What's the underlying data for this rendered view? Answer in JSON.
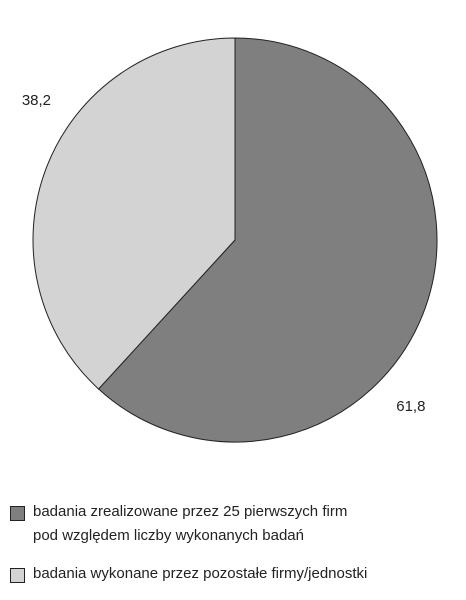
{
  "chart_data": {
    "type": "pie",
    "series": [
      {
        "name": "badania zrealizowane przez 25 pierwszych firm\npod względem liczby wykonanych badań",
        "color": "#7f7f7f",
        "values": [
          61.8
        ],
        "value_labels": [
          "61,8"
        ]
      },
      {
        "name": "badania wykonane przez pozostałe firmy/jednostki",
        "color": "#d3d3d3",
        "values": [
          38.2
        ],
        "value_labels": [
          "38,2"
        ]
      }
    ]
  }
}
